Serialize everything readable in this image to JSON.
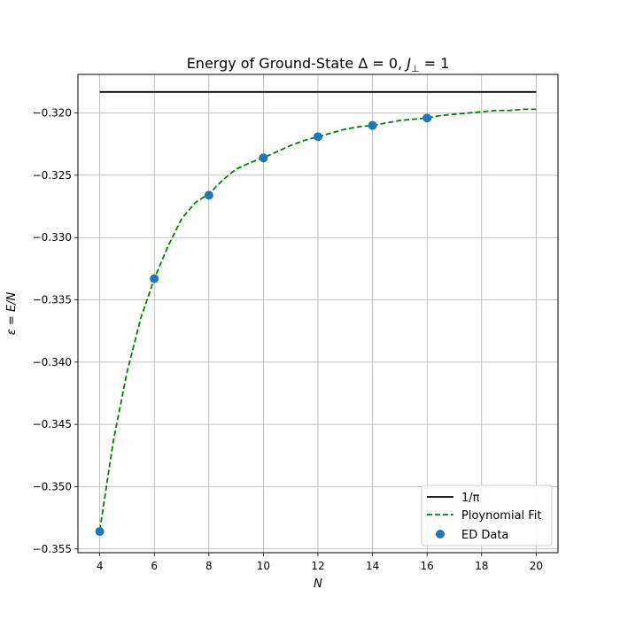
{
  "chart_data": {
    "type": "line",
    "title": "Energy of Ground-State Δ = 0, J⊥ = 1",
    "title_parts": {
      "main": "Energy of Ground-State ",
      "delta": "Δ = 0, ",
      "j": "J",
      "perp": "⊥",
      "jval": " = 1"
    },
    "xlabel": "N",
    "ylabel": "ε = E/N",
    "xlim": [
      3.2,
      20.8
    ],
    "ylim": [
      -0.3553,
      -0.3169
    ],
    "xticks": [
      4,
      6,
      8,
      10,
      12,
      14,
      16,
      18,
      20
    ],
    "xtick_labels": [
      "4",
      "6",
      "8",
      "10",
      "12",
      "14",
      "16",
      "18",
      "20"
    ],
    "yticks": [
      -0.355,
      -0.35,
      -0.345,
      -0.34,
      -0.335,
      -0.33,
      -0.325,
      -0.32
    ],
    "ytick_labels": [
      "−0.355",
      "−0.350",
      "−0.345",
      "−0.340",
      "−0.335",
      "−0.330",
      "−0.325",
      "−0.320"
    ],
    "grid": true,
    "legend_position": "lower-right",
    "series": [
      {
        "name": "1/π",
        "legend_label": "1/π",
        "style": "solid-line",
        "color": "#000000",
        "x": [
          4,
          20
        ],
        "y": [
          -0.31831,
          -0.31831
        ]
      },
      {
        "name": "Ploynomial Fit",
        "legend_label": "Ploynomial Fit",
        "style": "dashed-line",
        "color": "#008000",
        "x": [
          4,
          4.5,
          5,
          5.5,
          6,
          6.5,
          7,
          7.5,
          8,
          8.5,
          9,
          9.5,
          10,
          10.5,
          11,
          11.5,
          12,
          12.5,
          13,
          13.5,
          14,
          14.5,
          15,
          15.5,
          16,
          16.5,
          17,
          17.5,
          18,
          18.5,
          19,
          19.5,
          20
        ],
        "y": [
          -0.3535,
          -0.3463,
          -0.3408,
          -0.3365,
          -0.3333,
          -0.3307,
          -0.3285,
          -0.3272,
          -0.3265,
          -0.3254,
          -0.3245,
          -0.324,
          -0.3236,
          -0.3231,
          -0.3226,
          -0.3222,
          -0.3219,
          -0.3216,
          -0.3213,
          -0.3211,
          -0.321,
          -0.3208,
          -0.3206,
          -0.3205,
          -0.3204,
          -0.3202,
          -0.3201,
          -0.32,
          -0.3199,
          -0.3198,
          -0.3198,
          -0.3197,
          -0.3197
        ]
      },
      {
        "name": "ED Data",
        "legend_label": "ED Data",
        "style": "scatter",
        "color": "#1f77b4",
        "x": [
          4,
          6,
          8,
          10,
          12,
          14,
          16
        ],
        "y": [
          -0.3536,
          -0.3333,
          -0.3266,
          -0.3236,
          -0.3219,
          -0.321,
          -0.3204
        ]
      }
    ]
  }
}
